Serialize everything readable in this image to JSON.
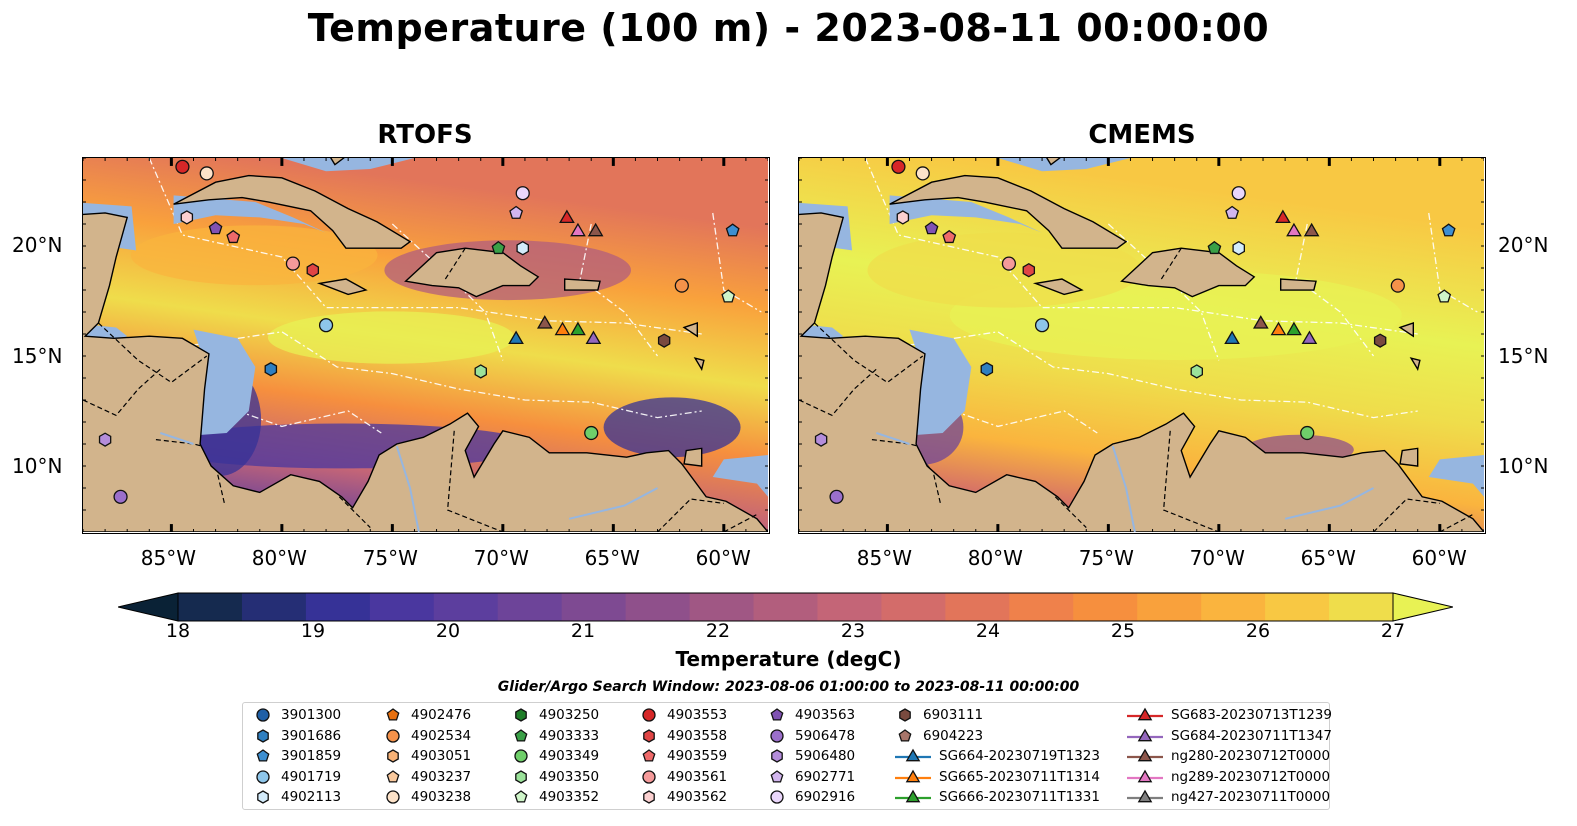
{
  "title": "Temperature (100 m) - 2023-08-11 00:00:00",
  "panels": [
    {
      "name": "RTOFS",
      "right_lat_labels": false,
      "palette": "warm"
    },
    {
      "name": "CMEMS",
      "right_lat_labels": true,
      "palette": "hot"
    }
  ],
  "axes": {
    "lon_ticks": [
      "85°W",
      "80°W",
      "75°W",
      "70°W",
      "65°W",
      "60°W"
    ],
    "lat_ticks": [
      "20°N",
      "15°N",
      "10°N"
    ],
    "lon_range": [
      -89,
      -58
    ],
    "lat_range": [
      7,
      24
    ]
  },
  "colorbar": {
    "label": "Temperature (degC)",
    "ticks": [
      "18",
      "19",
      "20",
      "21",
      "22",
      "23",
      "24",
      "25",
      "26",
      "27"
    ],
    "range": [
      18,
      27
    ],
    "extend": "both",
    "colors": [
      "#0a2236",
      "#152a4f",
      "#252e75",
      "#363297",
      "#4a379f",
      "#5c3e9e",
      "#6d4499",
      "#7e4a92",
      "#8f508b",
      "#a05784",
      "#b25e7d",
      "#c46577",
      "#d36c6a",
      "#e2755a",
      "#ef814b",
      "#f68f3e",
      "#f9a13c",
      "#fab43e",
      "#f8c843",
      "#efdd4b",
      "#e8f254"
    ]
  },
  "search_window": "Glider/Argo Search Window: 2023-08-06 01:00:00 to 2023-08-11 00:00:00",
  "legend": [
    {
      "label": "3901300",
      "marker": "circle",
      "color": "#1f5fa6"
    },
    {
      "label": "3901686",
      "marker": "hexagon",
      "color": "#2f7fc0"
    },
    {
      "label": "3901859",
      "marker": "pentagon",
      "color": "#3d8fd1"
    },
    {
      "label": "4901719",
      "marker": "circle",
      "color": "#8ec6ea"
    },
    {
      "label": "4902113",
      "marker": "hexagon",
      "color": "#d4ecfb"
    },
    {
      "label": "4902476",
      "marker": "pentagon",
      "color": "#e8700f"
    },
    {
      "label": "4902534",
      "marker": "circle",
      "color": "#f5924a"
    },
    {
      "label": "4903051",
      "marker": "hexagon",
      "color": "#f7b277"
    },
    {
      "label": "4903237",
      "marker": "pentagon",
      "color": "#fac99d"
    },
    {
      "label": "4903238",
      "marker": "circle",
      "color": "#fde3c9"
    },
    {
      "label": "4903250",
      "marker": "hexagon",
      "color": "#1e7d28"
    },
    {
      "label": "4903333",
      "marker": "pentagon",
      "color": "#3aa047"
    },
    {
      "label": "4903349",
      "marker": "circle",
      "color": "#6fcf6a"
    },
    {
      "label": "4903350",
      "marker": "hexagon",
      "color": "#9be29a"
    },
    {
      "label": "4903352",
      "marker": "pentagon",
      "color": "#cff5c9"
    },
    {
      "label": "4903553",
      "marker": "circle",
      "color": "#d62728"
    },
    {
      "label": "4903558",
      "marker": "hexagon",
      "color": "#e04545"
    },
    {
      "label": "4903559",
      "marker": "pentagon",
      "color": "#ef6a6a"
    },
    {
      "label": "4903561",
      "marker": "circle",
      "color": "#f59a9a"
    },
    {
      "label": "4903562",
      "marker": "hexagon",
      "color": "#fbd0d0"
    },
    {
      "label": "4903563",
      "marker": "pentagon",
      "color": "#8052b3"
    },
    {
      "label": "5906478",
      "marker": "circle",
      "color": "#9b6fcb"
    },
    {
      "label": "5906480",
      "marker": "hexagon",
      "color": "#b48ddb"
    },
    {
      "label": "6902771",
      "marker": "pentagon",
      "color": "#d2b6ee"
    },
    {
      "label": "6902916",
      "marker": "circle",
      "color": "#ead6fb"
    },
    {
      "label": "6903111",
      "marker": "hexagon",
      "color": "#7a4a3f"
    },
    {
      "label": "6904223",
      "marker": "pentagon",
      "color": "#a8756a"
    },
    {
      "label": "SG664-20230719T1323",
      "marker": "triangle-line",
      "color": "#1f77b4"
    },
    {
      "label": "SG665-20230711T1314",
      "marker": "triangle-line",
      "color": "#ff7f0e"
    },
    {
      "label": "SG666-20230711T1331",
      "marker": "triangle-line",
      "color": "#2ca02c"
    },
    {
      "label": "SG683-20230713T1239",
      "marker": "triangle-line",
      "color": "#d62728"
    },
    {
      "label": "SG684-20230711T1347",
      "marker": "triangle-line",
      "color": "#9467bd"
    },
    {
      "label": "ng280-20230712T0000",
      "marker": "triangle-line",
      "color": "#8c564b"
    },
    {
      "label": "ng289-20230712T0000",
      "marker": "triangle-line",
      "color": "#e377c2"
    },
    {
      "label": "ng427-20230711T0000",
      "marker": "triangle-line",
      "color": "#7f7f7f"
    }
  ],
  "markers": [
    {
      "id": "4903553",
      "lon": -84.5,
      "lat": 23.6
    },
    {
      "id": "4903238",
      "lon": -83.4,
      "lat": 23.3
    },
    {
      "id": "4903562",
      "lon": -84.3,
      "lat": 21.3
    },
    {
      "id": "4903563",
      "lon": -83.0,
      "lat": 20.8
    },
    {
      "id": "4903559",
      "lon": -82.2,
      "lat": 20.4
    },
    {
      "id": "4903561",
      "lon": -79.5,
      "lat": 19.2
    },
    {
      "id": "4903558",
      "lon": -78.6,
      "lat": 18.9
    },
    {
      "id": "4901719",
      "lon": -78.0,
      "lat": 16.4
    },
    {
      "id": "3901686",
      "lon": -80.5,
      "lat": 14.4
    },
    {
      "id": "5906480",
      "lon": -88.0,
      "lat": 11.2
    },
    {
      "id": "5906478",
      "lon": -87.3,
      "lat": 8.6
    },
    {
      "id": "6902916",
      "lon": -69.1,
      "lat": 22.4
    },
    {
      "id": "6902771",
      "lon": -69.4,
      "lat": 21.5
    },
    {
      "id": "4903333",
      "lon": -70.2,
      "lat": 19.9
    },
    {
      "id": "4902113",
      "lon": -69.1,
      "lat": 19.9
    },
    {
      "id": "3901859",
      "lon": -59.6,
      "lat": 20.7
    },
    {
      "id": "4902534",
      "lon": -61.9,
      "lat": 18.2
    },
    {
      "id": "4903352",
      "lon": -59.8,
      "lat": 17.7
    },
    {
      "id": "6903111",
      "lon": -62.7,
      "lat": 15.7
    },
    {
      "id": "4903350",
      "lon": -71.0,
      "lat": 14.3
    },
    {
      "id": "4903349",
      "lon": -66.0,
      "lat": 11.5
    },
    {
      "id": "SG683-20230713T1239",
      "lon": -67.1,
      "lat": 21.3
    },
    {
      "id": "ng289-20230712T0000",
      "lon": -66.6,
      "lat": 20.7
    },
    {
      "id": "ng280-20230712T0000",
      "lon": -65.8,
      "lat": 20.7
    },
    {
      "id": "SG664-20230719T1323",
      "lon": -69.4,
      "lat": 15.8
    },
    {
      "id": "ng280-20230712T0000",
      "lon": -68.1,
      "lat": 16.5
    },
    {
      "id": "SG665-20230711T1314",
      "lon": -67.3,
      "lat": 16.2
    },
    {
      "id": "SG666-20230711T1331",
      "lon": -66.6,
      "lat": 16.2
    },
    {
      "id": "SG684-20230711T1347",
      "lon": -65.9,
      "lat": 15.8
    }
  ]
}
